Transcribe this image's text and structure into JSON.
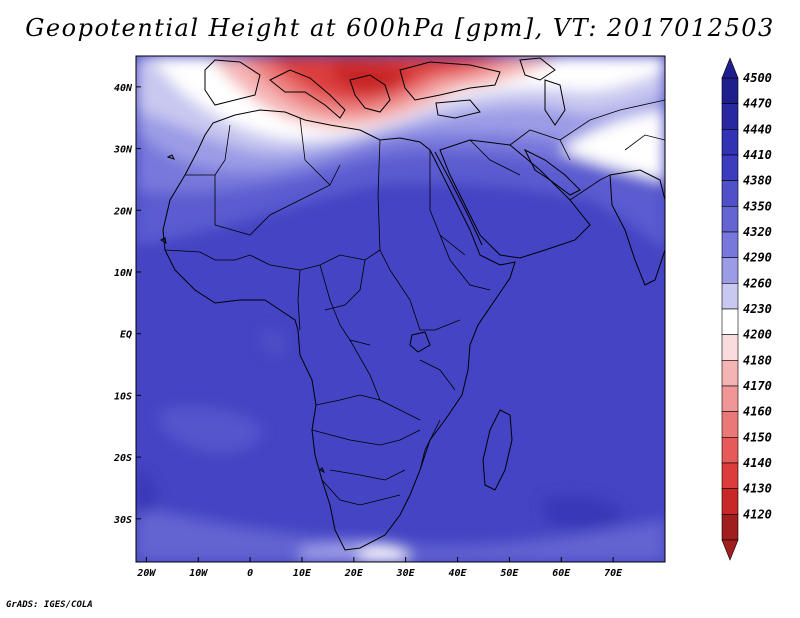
{
  "title": "Geopotential Height at 600hPa [gpm], VT: 2017012503",
  "credit": "GrADS: IGES/COLA",
  "map": {
    "lon_range": [
      -22,
      80
    ],
    "lat_range": [
      -37,
      45
    ],
    "lat_ticks": [
      {
        "value": 40,
        "label": "40N"
      },
      {
        "value": 30,
        "label": "30N"
      },
      {
        "value": 20,
        "label": "20N"
      },
      {
        "value": 10,
        "label": "10N"
      },
      {
        "value": 0,
        "label": "EQ"
      },
      {
        "value": -10,
        "label": "10S"
      },
      {
        "value": -20,
        "label": "20S"
      },
      {
        "value": -30,
        "label": "30S"
      }
    ],
    "lon_ticks": [
      {
        "value": -20,
        "label": "20W"
      },
      {
        "value": -10,
        "label": "10W"
      },
      {
        "value": 0,
        "label": "0"
      },
      {
        "value": 10,
        "label": "10E"
      },
      {
        "value": 20,
        "label": "20E"
      },
      {
        "value": 30,
        "label": "30E"
      },
      {
        "value": 40,
        "label": "40E"
      },
      {
        "value": 50,
        "label": "50E"
      },
      {
        "value": 60,
        "label": "60E"
      },
      {
        "value": 70,
        "label": "70E"
      }
    ]
  },
  "colorbar": {
    "levels": [
      {
        "label": "4500",
        "color": "#1e1e8c"
      },
      {
        "label": "4470",
        "color": "#2828a0"
      },
      {
        "label": "4440",
        "color": "#3232b4"
      },
      {
        "label": "4410",
        "color": "#3c3cbe"
      },
      {
        "label": "4380",
        "color": "#5050c8"
      },
      {
        "label": "4350",
        "color": "#6464d2"
      },
      {
        "label": "4320",
        "color": "#7878dc"
      },
      {
        "label": "4290",
        "color": "#9b9be6"
      },
      {
        "label": "4260",
        "color": "#c8c8f0"
      },
      {
        "label": "4230",
        "color": "#ffffff"
      },
      {
        "label": "4200",
        "color": "#fadcdc"
      },
      {
        "label": "4180",
        "color": "#f5b4b4"
      },
      {
        "label": "4170",
        "color": "#f09696"
      },
      {
        "label": "4160",
        "color": "#eb7878"
      },
      {
        "label": "4150",
        "color": "#e65a5a"
      },
      {
        "label": "4140",
        "color": "#dc3c3c"
      },
      {
        "label": "4130",
        "color": "#c82828"
      },
      {
        "label": "4120",
        "color": "#a01e1e"
      }
    ]
  }
}
